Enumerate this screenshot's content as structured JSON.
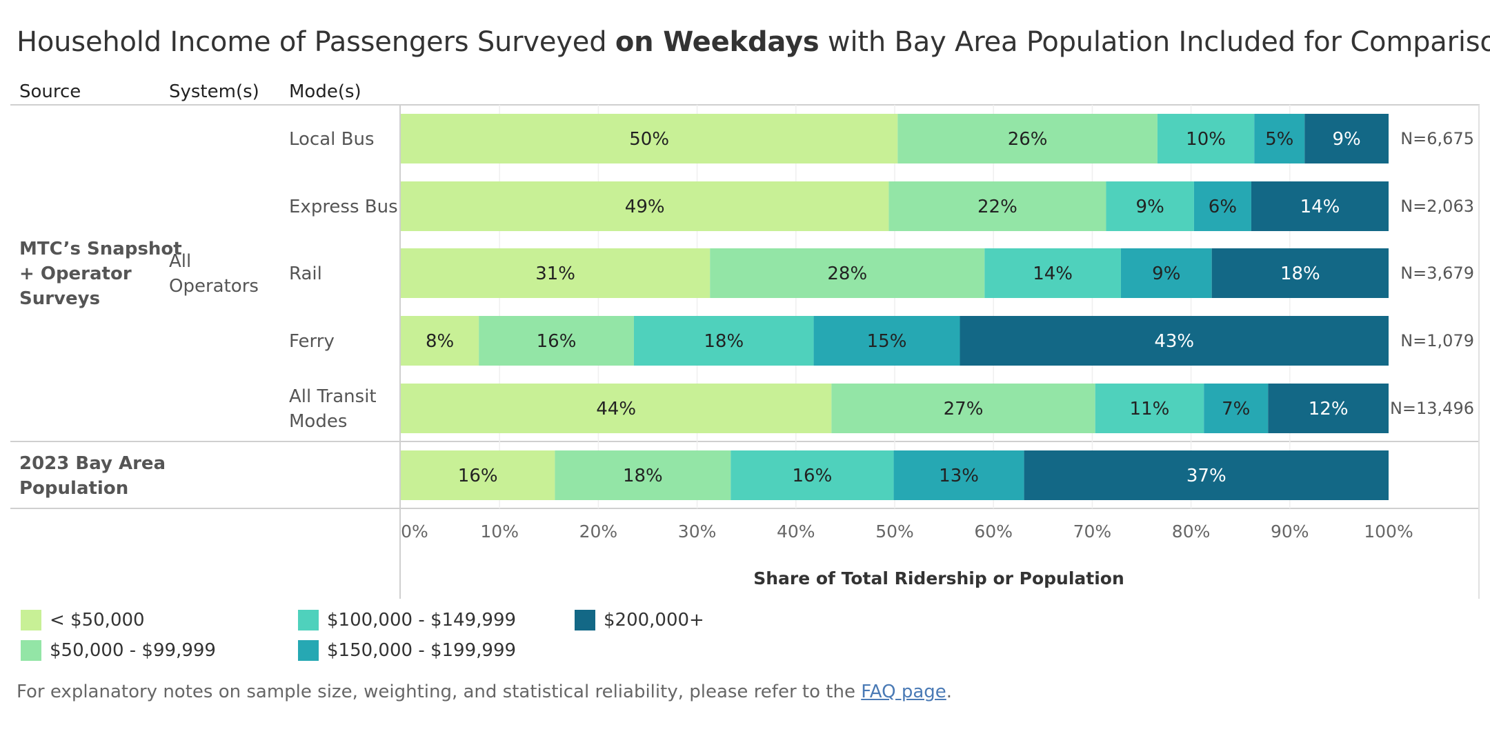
{
  "title": {
    "prefix": "Household Income of Passengers Surveyed ",
    "bold": "on Weekdays",
    "suffix": " with Bay Area Population Included for Comparison"
  },
  "headers": {
    "source": "Source",
    "systems": "System(s)",
    "modes": "Mode(s)"
  },
  "groups": [
    {
      "source": [
        "MTC’s Snapshot",
        "+ Operator",
        "Surveys"
      ],
      "system": [
        "All",
        "Operators"
      ]
    },
    {
      "source": [
        "2023 Bay Area",
        "Population"
      ],
      "system": []
    }
  ],
  "chart_data": {
    "type": "bar",
    "orientation": "horizontal",
    "stacked": true,
    "title": "Household Income of Passengers Surveyed on Weekdays with Bay Area Population Included for Comparison",
    "xlabel": "Share of Total Ridership or Population",
    "xlim": [
      0,
      100
    ],
    "xticks": [
      "0%",
      "10%",
      "20%",
      "30%",
      "40%",
      "50%",
      "60%",
      "70%",
      "80%",
      "90%",
      "100%"
    ],
    "categories": [
      "Local Bus",
      "Express Bus",
      "Rail",
      "Ferry",
      "All Transit Modes",
      "2023 Bay Area Population"
    ],
    "category_lines": [
      [
        "Local Bus"
      ],
      [
        "Express Bus"
      ],
      [
        "Rail"
      ],
      [
        "Ferry"
      ],
      [
        "All Transit",
        "Modes"
      ],
      []
    ],
    "sample_sizes": [
      "N=6,675",
      "N=2,063",
      "N=3,679",
      "N=1,079",
      "N=13,496",
      ""
    ],
    "series": [
      {
        "name": "< $50,000",
        "color": "#c8f096",
        "label_color": "#222222",
        "values": [
          50.3,
          49.4,
          31.3,
          7.9,
          43.6,
          15.6
        ]
      },
      {
        "name": "$50,000 - $99,999",
        "color": "#93e5a6",
        "label_color": "#222222",
        "values": [
          26.3,
          22.0,
          27.8,
          15.7,
          26.7,
          17.8
        ]
      },
      {
        "name": "$100,000 - $149,999",
        "color": "#4fd1bc",
        "label_color": "#222222",
        "values": [
          9.8,
          8.9,
          13.8,
          18.2,
          11.0,
          16.5
        ]
      },
      {
        "name": "$150,000 - $199,999",
        "color": "#26a8b3",
        "label_color": "#222222",
        "values": [
          5.1,
          5.8,
          9.2,
          14.8,
          6.5,
          13.2
        ]
      },
      {
        "name": "$200,000+",
        "color": "#136886",
        "label_color": "#ffffff",
        "values": [
          8.5,
          13.9,
          17.9,
          43.4,
          12.2,
          36.9
        ]
      }
    ],
    "data_labels": [
      [
        "50%",
        "49%",
        "31%",
        "8%",
        "44%",
        "16%"
      ],
      [
        "26%",
        "22%",
        "28%",
        "16%",
        "27%",
        "18%"
      ],
      [
        "10%",
        "9%",
        "14%",
        "18%",
        "11%",
        "16%"
      ],
      [
        "5%",
        "6%",
        "9%",
        "15%",
        "7%",
        "13%"
      ],
      [
        "9%",
        "14%",
        "18%",
        "43%",
        "12%",
        "37%"
      ]
    ],
    "legend_position": "bottom-left"
  },
  "footnote": {
    "text": "For explanatory notes on sample size, weighting, and statistical reliability, please refer to the ",
    "link": "FAQ page",
    "end": "."
  }
}
